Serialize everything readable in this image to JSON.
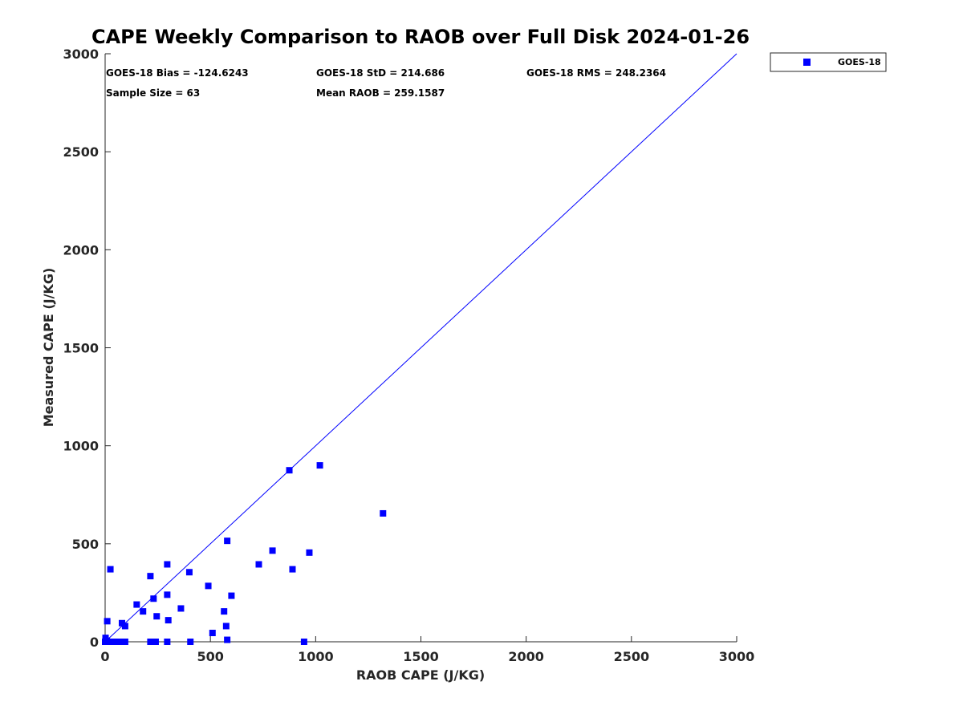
{
  "chart_data": {
    "type": "scatter",
    "title": "CAPE Weekly Comparison to RAOB over Full Disk 2024-01-26",
    "xlabel": "RAOB CAPE (J/KG)",
    "ylabel": "Measured CAPE (J/KG)",
    "xlim": [
      0,
      3000
    ],
    "ylim": [
      0,
      3000
    ],
    "xticks": [
      "0",
      "500",
      "1000",
      "1500",
      "2000",
      "2500",
      "3000"
    ],
    "yticks": [
      "0",
      "500",
      "1000",
      "1500",
      "2000",
      "2500",
      "3000"
    ],
    "grid": false,
    "legend_position": "outside-top-right",
    "reference_line": {
      "type": "one-to-one",
      "from": [
        0,
        0
      ],
      "to": [
        3000,
        3000
      ],
      "color": "#0000ff"
    },
    "stats": {
      "bias": "GOES-18 Bias = -124.6243",
      "std": "GOES-18 StD = 214.686",
      "rms": "GOES-18 RMS = 248.2364",
      "sample_size": "Sample Size = 63",
      "mean_raob": "Mean RAOB = 259.1587"
    },
    "series": [
      {
        "name": "GOES-18",
        "color": "#0000ff",
        "marker": "square",
        "x": [
          0,
          2,
          5,
          8,
          10,
          15,
          20,
          25,
          35,
          45,
          55,
          65,
          75,
          85,
          95,
          10,
          25,
          80,
          95,
          150,
          180,
          215,
          230,
          245,
          295,
          300,
          360,
          400,
          490,
          215,
          225,
          240,
          295,
          405,
          510,
          565,
          575,
          580,
          945,
          295,
          580,
          600,
          730,
          795,
          875,
          890,
          970,
          1020,
          1320
        ],
        "y": [
          0,
          20,
          0,
          5,
          0,
          0,
          0,
          0,
          0,
          0,
          0,
          0,
          0,
          0,
          0,
          105,
          370,
          95,
          80,
          190,
          155,
          335,
          220,
          130,
          240,
          110,
          170,
          355,
          285,
          0,
          0,
          0,
          395,
          0,
          45,
          155,
          80,
          10,
          0,
          0,
          515,
          235,
          395,
          465,
          875,
          370,
          455,
          900,
          655
        ]
      }
    ]
  }
}
